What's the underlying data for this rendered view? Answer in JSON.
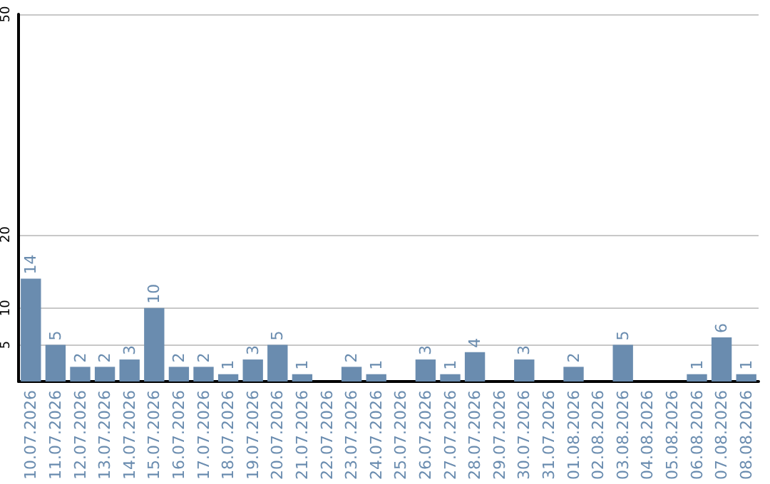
{
  "chart_data": {
    "type": "bar",
    "categories": [
      "10.07.2026",
      "11.07.2026",
      "12.07.2026",
      "13.07.2026",
      "14.07.2026",
      "15.07.2026",
      "16.07.2026",
      "17.07.2026",
      "18.07.2026",
      "19.07.2026",
      "20.07.2026",
      "21.07.2026",
      "22.07.2026",
      "23.07.2026",
      "24.07.2026",
      "25.07.2026",
      "26.07.2026",
      "27.07.2026",
      "28.07.2026",
      "29.07.2026",
      "30.07.2026",
      "31.07.2026",
      "01.08.2026",
      "02.08.2026",
      "03.08.2026",
      "04.08.2026",
      "05.08.2026",
      "06.08.2026",
      "07.08.2026",
      "08.08.2026"
    ],
    "values": [
      14,
      5,
      2,
      2,
      3,
      10,
      2,
      2,
      1,
      3,
      5,
      1,
      null,
      2,
      1,
      null,
      3,
      1,
      4,
      null,
      3,
      null,
      2,
      null,
      5,
      null,
      null,
      1,
      6,
      1
    ],
    "color": "#6a8caf",
    "ylim": [
      0,
      50
    ],
    "yticks": [
      5,
      10,
      20,
      50
    ],
    "grid": "y",
    "data_labels": true
  }
}
